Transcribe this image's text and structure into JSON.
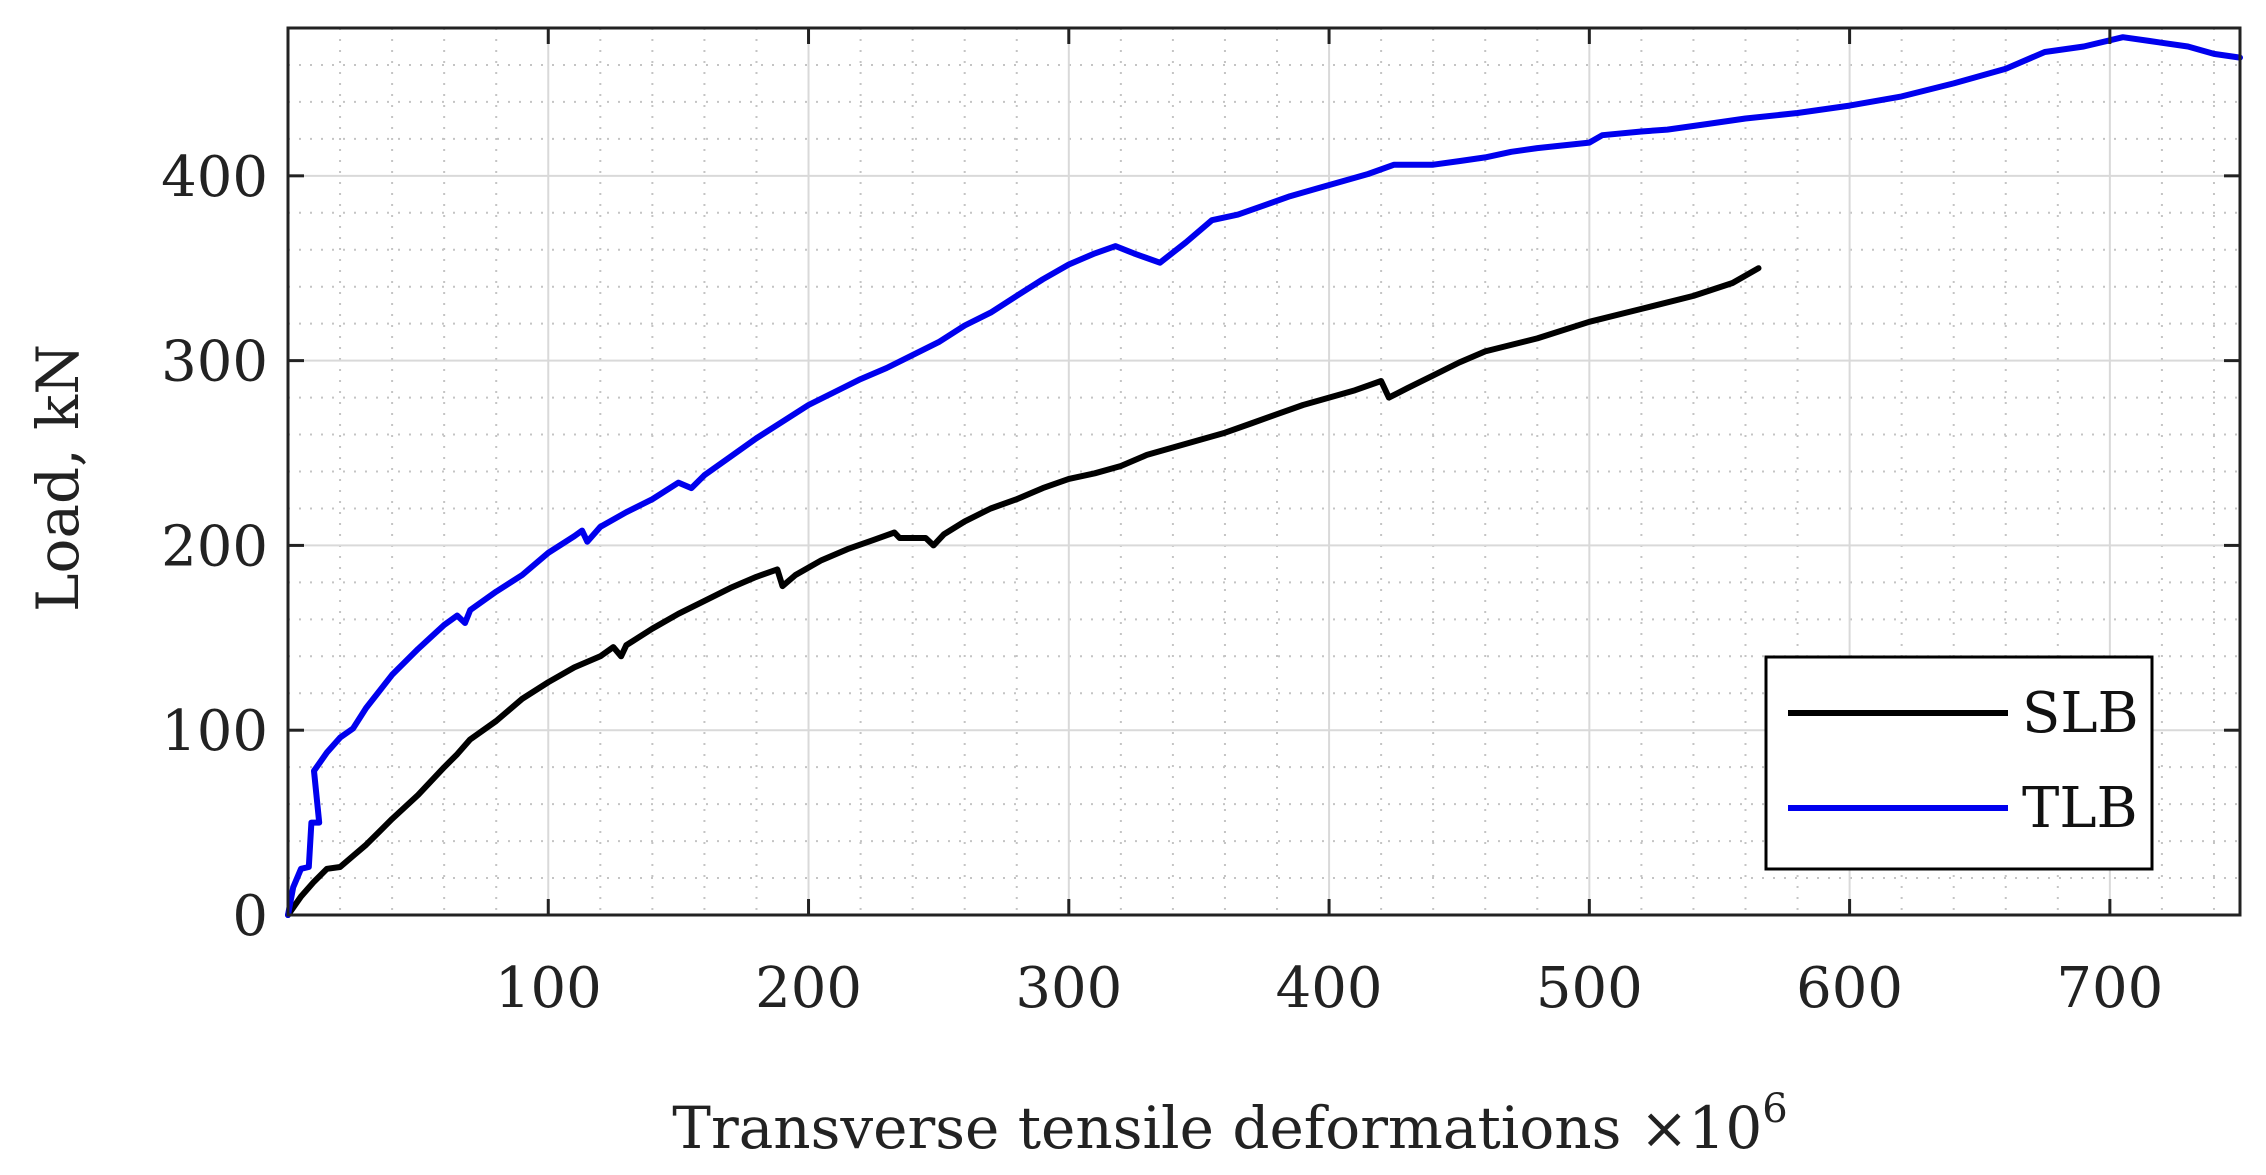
{
  "chart_data": {
    "type": "line",
    "xlabel": "Transverse tensile deformations ×10",
    "xlabel_exponent": "6",
    "ylabel": "Load, kN",
    "xlim": [
      0,
      750
    ],
    "ylim": [
      0,
      480
    ],
    "x_ticks": [
      100,
      200,
      300,
      400,
      500,
      600,
      700
    ],
    "y_ticks": [
      0,
      100,
      200,
      300,
      400
    ],
    "x_tick_labels": [
      "100",
      "200",
      "300",
      "400",
      "500",
      "600",
      "700"
    ],
    "y_tick_labels": [
      "0",
      "100",
      "200",
      "300",
      "400"
    ],
    "grid": "major solid, minor dotted",
    "legend_position": "lower-right",
    "series": [
      {
        "name": "SLB",
        "color": "#000000",
        "points": [
          [
            0,
            0
          ],
          [
            5,
            10
          ],
          [
            10,
            18
          ],
          [
            15,
            25
          ],
          [
            20,
            26
          ],
          [
            25,
            32
          ],
          [
            30,
            38
          ],
          [
            40,
            52
          ],
          [
            50,
            65
          ],
          [
            60,
            80
          ],
          [
            65,
            87
          ],
          [
            70,
            95
          ],
          [
            80,
            105
          ],
          [
            90,
            117
          ],
          [
            100,
            126
          ],
          [
            110,
            134
          ],
          [
            120,
            140
          ],
          [
            125,
            145
          ],
          [
            128,
            140
          ],
          [
            130,
            146
          ],
          [
            140,
            155
          ],
          [
            150,
            163
          ],
          [
            160,
            170
          ],
          [
            170,
            177
          ],
          [
            180,
            183
          ],
          [
            188,
            187
          ],
          [
            190,
            178
          ],
          [
            195,
            184
          ],
          [
            205,
            192
          ],
          [
            215,
            198
          ],
          [
            225,
            203
          ],
          [
            233,
            207
          ],
          [
            235,
            204
          ],
          [
            245,
            204
          ],
          [
            248,
            200
          ],
          [
            252,
            206
          ],
          [
            260,
            213
          ],
          [
            270,
            220
          ],
          [
            280,
            225
          ],
          [
            290,
            231
          ],
          [
            300,
            236
          ],
          [
            310,
            239
          ],
          [
            320,
            243
          ],
          [
            330,
            249
          ],
          [
            340,
            253
          ],
          [
            350,
            257
          ],
          [
            360,
            261
          ],
          [
            370,
            266
          ],
          [
            380,
            271
          ],
          [
            390,
            276
          ],
          [
            400,
            280
          ],
          [
            410,
            284
          ],
          [
            420,
            289
          ],
          [
            423,
            280
          ],
          [
            430,
            285
          ],
          [
            440,
            292
          ],
          [
            450,
            299
          ],
          [
            460,
            305
          ],
          [
            480,
            312
          ],
          [
            500,
            321
          ],
          [
            520,
            328
          ],
          [
            540,
            335
          ],
          [
            555,
            342
          ],
          [
            565,
            350
          ]
        ]
      },
      {
        "name": "TLB",
        "color": "#0000ee",
        "points": [
          [
            0,
            0
          ],
          [
            2,
            15
          ],
          [
            5,
            25
          ],
          [
            8,
            26
          ],
          [
            9,
            50
          ],
          [
            12,
            50
          ],
          [
            10,
            78
          ],
          [
            15,
            88
          ],
          [
            20,
            96
          ],
          [
            25,
            101
          ],
          [
            30,
            112
          ],
          [
            40,
            130
          ],
          [
            50,
            144
          ],
          [
            60,
            157
          ],
          [
            65,
            162
          ],
          [
            68,
            158
          ],
          [
            70,
            165
          ],
          [
            80,
            175
          ],
          [
            90,
            184
          ],
          [
            100,
            196
          ],
          [
            110,
            205
          ],
          [
            113,
            208
          ],
          [
            115,
            202
          ],
          [
            120,
            210
          ],
          [
            130,
            218
          ],
          [
            140,
            225
          ],
          [
            150,
            234
          ],
          [
            155,
            231
          ],
          [
            160,
            238
          ],
          [
            170,
            248
          ],
          [
            180,
            258
          ],
          [
            190,
            267
          ],
          [
            200,
            276
          ],
          [
            210,
            283
          ],
          [
            220,
            290
          ],
          [
            230,
            296
          ],
          [
            240,
            303
          ],
          [
            250,
            310
          ],
          [
            260,
            319
          ],
          [
            270,
            326
          ],
          [
            280,
            335
          ],
          [
            290,
            344
          ],
          [
            300,
            352
          ],
          [
            310,
            358
          ],
          [
            318,
            362
          ],
          [
            325,
            358
          ],
          [
            335,
            353
          ],
          [
            345,
            364
          ],
          [
            355,
            376
          ],
          [
            365,
            379
          ],
          [
            375,
            384
          ],
          [
            385,
            389
          ],
          [
            395,
            393
          ],
          [
            405,
            397
          ],
          [
            415,
            401
          ],
          [
            425,
            406
          ],
          [
            440,
            406
          ],
          [
            450,
            408
          ],
          [
            460,
            410
          ],
          [
            470,
            413
          ],
          [
            480,
            415
          ],
          [
            500,
            418
          ],
          [
            505,
            422
          ],
          [
            520,
            424
          ],
          [
            530,
            425
          ],
          [
            545,
            428
          ],
          [
            560,
            431
          ],
          [
            580,
            434
          ],
          [
            600,
            438
          ],
          [
            620,
            443
          ],
          [
            640,
            450
          ],
          [
            660,
            458
          ],
          [
            675,
            467
          ],
          [
            690,
            470
          ],
          [
            705,
            475
          ],
          [
            715,
            473
          ],
          [
            730,
            470
          ],
          [
            740,
            466
          ],
          [
            750,
            464
          ]
        ]
      }
    ]
  }
}
